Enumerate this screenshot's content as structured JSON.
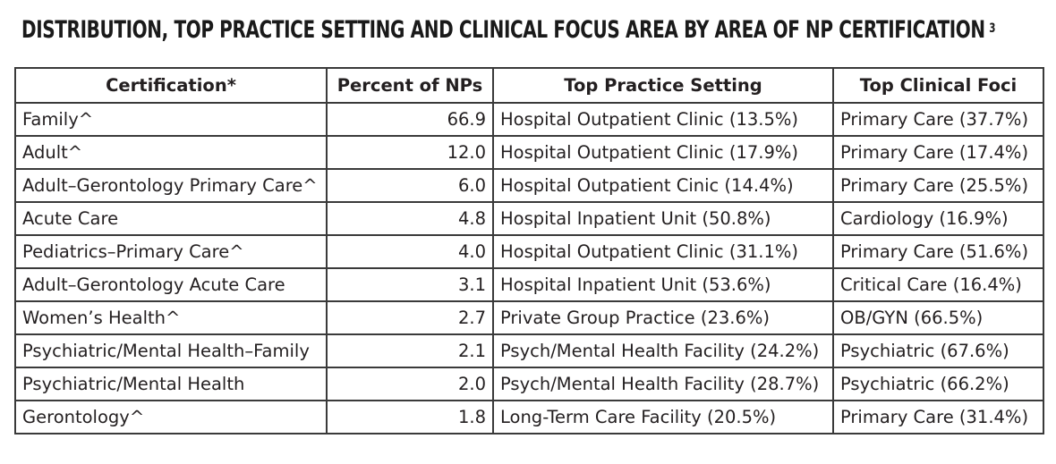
{
  "title": {
    "text": "Distribution, Top Practice Setting and Clinical Focus Area by Area of NP Certification",
    "footnote": "3"
  },
  "table": {
    "headers": [
      "Certification*",
      "Percent of NPs",
      "Top Practice Setting",
      "Top Clinical Foci"
    ],
    "rows": [
      {
        "certification": "Family^",
        "percent": "66.9",
        "setting": "Hospital Outpatient Clinic (13.5%)",
        "foci": "Primary Care (37.7%)"
      },
      {
        "certification": "Adult^",
        "percent": "12.0",
        "setting": "Hospital Outpatient Clinic (17.9%)",
        "foci": "Primary Care (17.4%)"
      },
      {
        "certification": "Adult–Gerontology Primary Care^",
        "percent": "6.0",
        "setting": "Hospital Outpatient Cinic (14.4%)",
        "foci": "Primary Care (25.5%)"
      },
      {
        "certification": "Acute Care",
        "percent": "4.8",
        "setting": "Hospital Inpatient Unit (50.8%)",
        "foci": "Cardiology (16.9%)"
      },
      {
        "certification": "Pediatrics–Primary Care^",
        "percent": "4.0",
        "setting": "Hospital Outpatient Clinic (31.1%)",
        "foci": "Primary Care (51.6%)"
      },
      {
        "certification": "Adult–Gerontology Acute Care",
        "percent": "3.1",
        "setting": "Hospital Inpatient Unit (53.6%)",
        "foci": "Critical Care (16.4%)"
      },
      {
        "certification": "Women’s Health^",
        "percent": "2.7",
        "setting": "Private Group Practice (23.6%)",
        "foci": "OB/GYN (66.5%)"
      },
      {
        "certification": "Psychiatric/Mental Health–Family",
        "percent": "2.1",
        "setting": "Psych/Mental Health Facility (24.2%)",
        "foci": "Psychiatric (67.6%)"
      },
      {
        "certification": "Psychiatric/Mental Health",
        "percent": "2.0",
        "setting": "Psych/Mental Health Facility (28.7%)",
        "foci": "Psychiatric (66.2%)"
      },
      {
        "certification": "Gerontology^",
        "percent": "1.8",
        "setting": "Long-Term Care Facility (20.5%)",
        "foci": "Primary Care (31.4%)"
      }
    ]
  }
}
